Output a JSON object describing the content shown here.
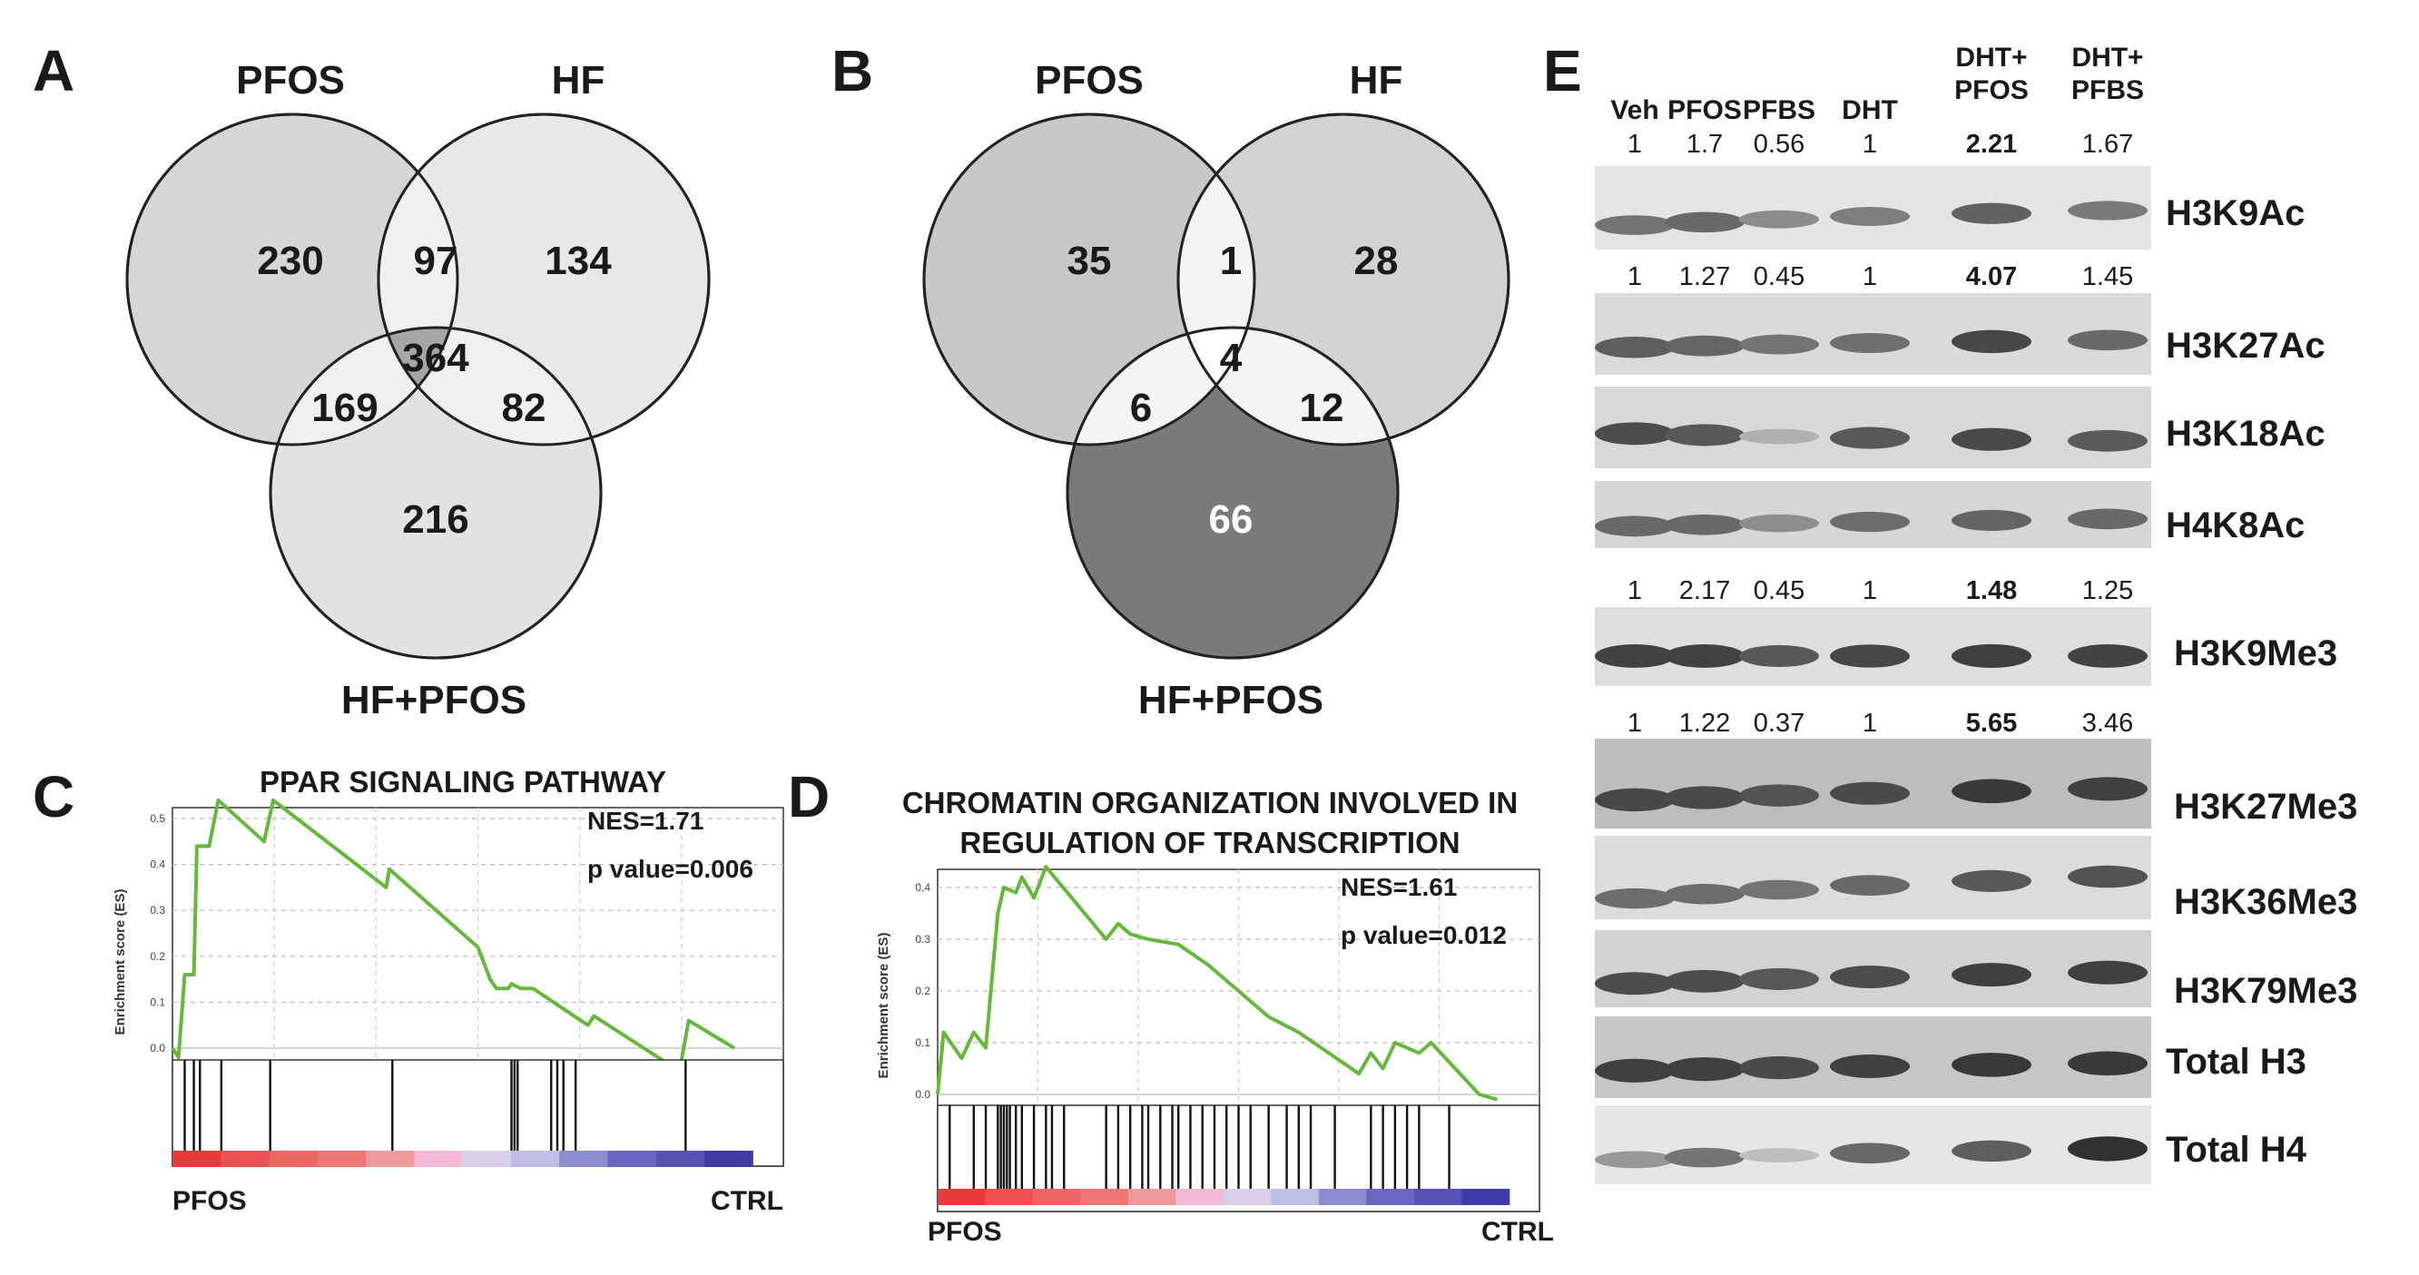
{
  "panels": {
    "A": {
      "letter": "A",
      "labels": {
        "left": "PFOS",
        "right": "HF",
        "bottom": "HF+PFOS"
      },
      "counts": {
        "left_only": "230",
        "left_right": "97",
        "right_only": "134",
        "all": "364",
        "left_bottom": "169",
        "right_bottom": "82",
        "bottom_only": "216"
      },
      "colors": {
        "left": "#d6d6d6",
        "right": "#e8e8e8",
        "bottom": "#e2e2e2",
        "pair": "#f0f0f0",
        "center": "#a6a6a6"
      }
    },
    "B": {
      "letter": "B",
      "labels": {
        "left": "PFOS",
        "right": "HF",
        "bottom": "HF+PFOS"
      },
      "counts": {
        "left_only": "35",
        "left_right": "1",
        "right_only": "28",
        "all": "4",
        "left_bottom": "6",
        "right_bottom": "12",
        "bottom_only": "66"
      },
      "colors": {
        "left": "#c8c8c8",
        "right": "#d2d2d2",
        "bottom": "#7a7a7a",
        "pair": "#f4f4f4",
        "center": "#ffffff"
      }
    },
    "C": {
      "letter": "C",
      "title": "PPAR SIGNALING PATHWAY",
      "nes": "NES=1.71",
      "pvalue": "p value=0.006",
      "ylabel": "Enrichment score (ES)",
      "yticks": [
        "0.5",
        "0.4",
        "0.3",
        "0.2",
        "0.1",
        "0.0"
      ],
      "left_end": "PFOS",
      "right_end": "CTRL"
    },
    "D": {
      "letter": "D",
      "title_line1": "CHROMATIN ORGANIZATION INVOLVED IN",
      "title_line2": "REGULATION OF TRANSCRIPTION",
      "nes": "NES=1.61",
      "pvalue": "p value=0.012",
      "ylabel": "Enrichment score (ES)",
      "yticks": [
        "0.4",
        "0.3",
        "0.2",
        "0.1",
        "0.0"
      ],
      "left_end": "PFOS",
      "right_end": "CTRL"
    },
    "E": {
      "letter": "E",
      "columns": [
        {
          "line1": "",
          "line2": "Veh"
        },
        {
          "line1": "",
          "line2": "PFOS"
        },
        {
          "line1": "",
          "line2": "PFBS"
        },
        {
          "line1": "",
          "line2": "DHT"
        },
        {
          "line1": "DHT+",
          "line2": "PFOS"
        },
        {
          "line1": "DHT+",
          "line2": "PFBS"
        }
      ],
      "rows": [
        {
          "name": "H3K9Ac",
          "values": [
            "1",
            "1.7",
            "0.56",
            "1",
            "2.21",
            "1.67"
          ]
        },
        {
          "name": "H3K27Ac",
          "values": [
            "1",
            "1.27",
            "0.45",
            "1",
            "4.07",
            "1.45"
          ]
        },
        {
          "name": "H3K18Ac",
          "values": []
        },
        {
          "name": "H4K8Ac",
          "values": []
        },
        {
          "name": "H3K9Me3",
          "values": [
            "1",
            "2.17",
            "0.45",
            "1",
            "1.48",
            "1.25"
          ]
        },
        {
          "name": "H3K27Me3",
          "values": [
            "1",
            "1.22",
            "0.37",
            "1",
            "5.65",
            "3.46"
          ]
        },
        {
          "name": "H3K36Me3",
          "values": []
        },
        {
          "name": "H3K79Me3",
          "values": []
        },
        {
          "name": "Total H3",
          "values": []
        },
        {
          "name": "Total H4",
          "values": []
        }
      ]
    }
  }
}
